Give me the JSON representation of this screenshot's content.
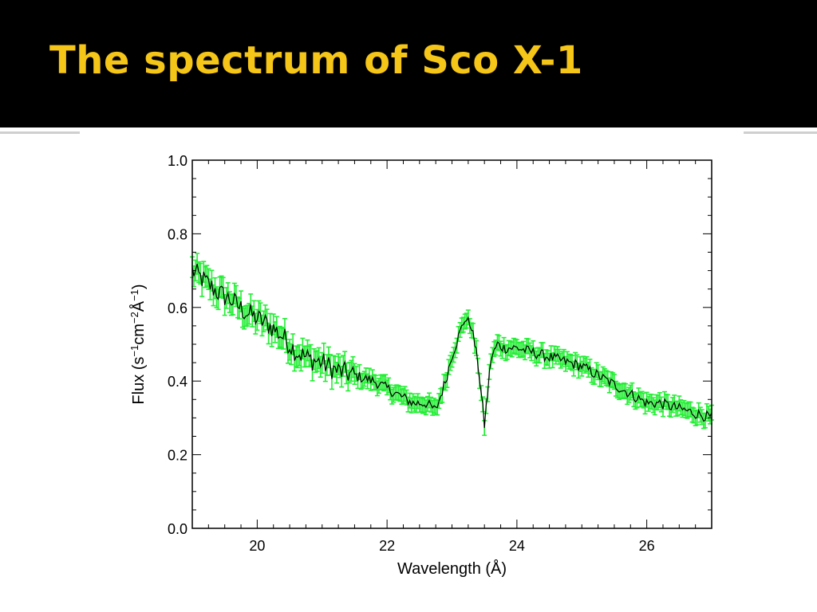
{
  "slide": {
    "title": "The spectrum of Sco X-1"
  },
  "colors": {
    "title_bar": "#000000",
    "title_text": "#f5c518",
    "error_bars": "#22ee33",
    "line": "#000000"
  },
  "chart_data": {
    "type": "line",
    "title": "",
    "xlabel": "Wavelength (Å)",
    "ylabel_parts": [
      "Flux (s",
      "−1",
      "cm",
      "−2",
      "Å",
      "−1",
      ")"
    ],
    "xlim": [
      19.0,
      27.0
    ],
    "ylim": [
      0.0,
      1.0
    ],
    "xticks": [
      20,
      22,
      24,
      26
    ],
    "xtick_labels": [
      "20",
      "22",
      "24",
      "26"
    ],
    "yticks": [
      0.0,
      0.2,
      0.4,
      0.6,
      0.8,
      1.0
    ],
    "ytick_labels": [
      "0.0",
      "0.2",
      "0.4",
      "0.6",
      "0.8",
      "1.0"
    ],
    "grid": false,
    "series": [
      {
        "x": [
          19.0,
          19.2,
          19.4,
          19.6,
          19.8,
          20.0,
          20.2,
          20.4,
          20.6,
          20.8,
          21.0,
          21.2,
          21.4,
          21.6,
          21.8,
          22.0,
          22.2,
          22.4,
          22.6,
          22.75,
          22.9,
          23.0,
          23.1,
          23.2,
          23.3,
          23.4,
          23.5,
          23.6,
          23.7,
          23.8,
          24.0,
          24.2,
          24.4,
          24.6,
          24.8,
          25.0,
          25.2,
          25.4,
          25.6,
          25.8,
          26.0,
          26.2,
          26.4,
          26.6,
          26.8,
          27.0
        ],
        "y": [
          0.7,
          0.67,
          0.64,
          0.62,
          0.59,
          0.57,
          0.55,
          0.52,
          0.48,
          0.46,
          0.45,
          0.43,
          0.42,
          0.41,
          0.4,
          0.38,
          0.36,
          0.34,
          0.34,
          0.32,
          0.4,
          0.47,
          0.52,
          0.57,
          0.55,
          0.45,
          0.28,
          0.46,
          0.5,
          0.49,
          0.49,
          0.48,
          0.47,
          0.46,
          0.45,
          0.44,
          0.42,
          0.4,
          0.38,
          0.36,
          0.34,
          0.34,
          0.33,
          0.32,
          0.31,
          0.3
        ],
        "error": 0.02
      }
    ]
  }
}
